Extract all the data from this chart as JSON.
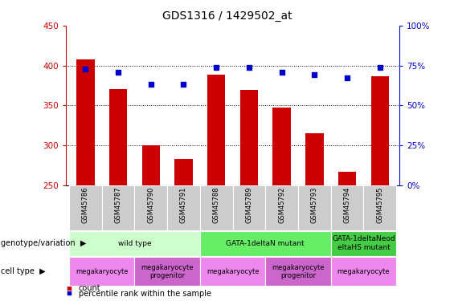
{
  "title": "GDS1316 / 1429502_at",
  "samples": [
    "GSM45786",
    "GSM45787",
    "GSM45790",
    "GSM45791",
    "GSM45788",
    "GSM45789",
    "GSM45792",
    "GSM45793",
    "GSM45794",
    "GSM45795"
  ],
  "bar_values": [
    408,
    370,
    300,
    283,
    388,
    369,
    347,
    315,
    267,
    386
  ],
  "dot_values": [
    73,
    71,
    63,
    63,
    74,
    74,
    71,
    69,
    67,
    74
  ],
  "ylim_left": [
    250,
    450
  ],
  "ylim_right": [
    0,
    100
  ],
  "yticks_left": [
    250,
    300,
    350,
    400,
    450
  ],
  "yticks_right": [
    0,
    25,
    50,
    75,
    100
  ],
  "bar_color": "#cc0000",
  "dot_color": "#0000cc",
  "bg_color": "#ffffff",
  "genotype_groups": [
    {
      "label": "wild type",
      "start": 0,
      "end": 4,
      "color": "#ccffcc"
    },
    {
      "label": "GATA-1deltaN mutant",
      "start": 4,
      "end": 8,
      "color": "#66ee66"
    },
    {
      "label": "GATA-1deltaNeod\neltaHS mutant",
      "start": 8,
      "end": 10,
      "color": "#44cc44"
    }
  ],
  "cell_type_groups": [
    {
      "label": "megakaryocyte",
      "start": 0,
      "end": 2,
      "color": "#ee88ee"
    },
    {
      "label": "megakaryocyte\nprogenitor",
      "start": 2,
      "end": 4,
      "color": "#cc66cc"
    },
    {
      "label": "megakaryocyte",
      "start": 4,
      "end": 6,
      "color": "#ee88ee"
    },
    {
      "label": "megakaryocyte\nprogenitor",
      "start": 6,
      "end": 8,
      "color": "#cc66cc"
    },
    {
      "label": "megakaryocyte",
      "start": 8,
      "end": 10,
      "color": "#ee88ee"
    }
  ],
  "sample_bg": "#cccccc",
  "title_fontsize": 10,
  "axis_fontsize": 7.5,
  "label_fontsize": 7,
  "legend_fontsize": 7
}
